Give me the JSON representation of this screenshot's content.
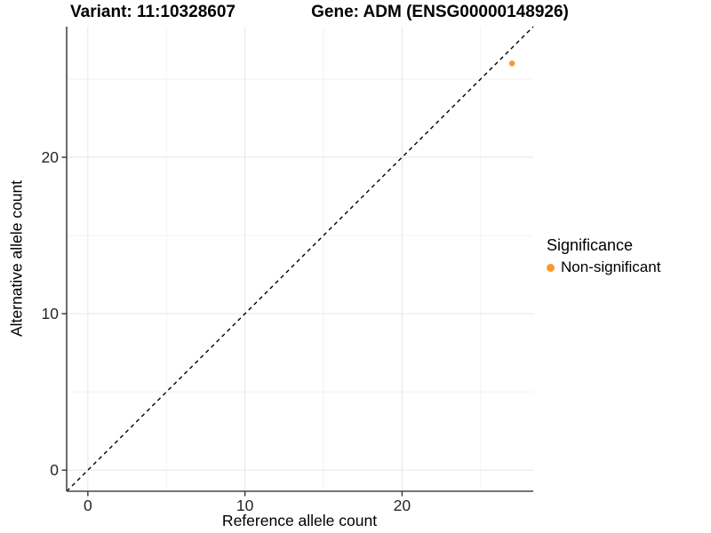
{
  "chart_data": {
    "type": "scatter",
    "title_left": "Variant: 11:10328607",
    "title_right": "Gene: ADM (ENSG00000148926)",
    "xlabel": "Reference allele count",
    "ylabel": "Alternative allele count",
    "xlim": [
      -1.35,
      28.35
    ],
    "ylim": [
      -1.35,
      28.35
    ],
    "x_ticks": [
      0,
      10,
      20
    ],
    "y_ticks": [
      0,
      10,
      20
    ],
    "x_minor_ticks": [
      5,
      15,
      25
    ],
    "y_minor_ticks": [
      5,
      15,
      25
    ],
    "grid": true,
    "legend_position": "right",
    "legend": {
      "title": "Significance"
    },
    "series": [
      {
        "name": "Non-significant",
        "color": "#F9992B",
        "points": [
          {
            "x": 27,
            "y": 26
          }
        ]
      }
    ],
    "reference_line": {
      "slope": 1,
      "intercept": 0,
      "style": "dashed",
      "color": "#000000"
    },
    "colors": {
      "axis_line": "#474747",
      "tick_mark": "#333333",
      "tick_label": "#262626",
      "grid_major": "#e6e6e6",
      "grid_minor": "#f2f2f2",
      "background": "#ffffff"
    }
  }
}
